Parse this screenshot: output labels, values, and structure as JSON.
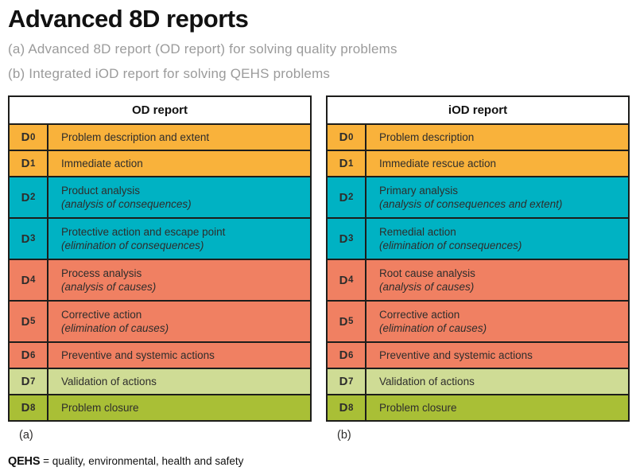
{
  "title": "Advanced 8D reports",
  "subtitles": [
    "(a) Advanced 8D report (OD report) for solving quality problems",
    "(b) Integrated iOD report for solving QEHS problems"
  ],
  "colors": {
    "orange": "#F9B23B",
    "teal": "#00B2C3",
    "salmon": "#F08062",
    "lightgreen": "#CFDC95",
    "olive": "#A9BF36",
    "border": "#1d1d1b",
    "subtitle_gray": "#9b9b9b"
  },
  "tables": [
    {
      "header": "OD report",
      "caption": "(a)",
      "rows": [
        {
          "step": "D",
          "num": "0",
          "line1": "Problem description and extent",
          "line2": "",
          "color": "orange"
        },
        {
          "step": "D",
          "num": "1",
          "line1": "Immediate action",
          "line2": "",
          "color": "orange"
        },
        {
          "step": "D",
          "num": "2",
          "line1": "Product analysis",
          "line2": "(analysis of consequences)",
          "color": "teal"
        },
        {
          "step": "D",
          "num": "3",
          "line1": "Protective action and escape point",
          "line2": "(elimination of consequences)",
          "color": "teal"
        },
        {
          "step": "D",
          "num": "4",
          "line1": "Process analysis",
          "line2": "(analysis of causes)",
          "color": "salmon"
        },
        {
          "step": "D",
          "num": "5",
          "line1": "Corrective action",
          "line2": "(elimination of causes)",
          "color": "salmon"
        },
        {
          "step": "D",
          "num": "6",
          "line1": "Preventive and systemic actions",
          "line2": "",
          "color": "salmon"
        },
        {
          "step": "D",
          "num": "7",
          "line1": "Validation of actions",
          "line2": "",
          "color": "lightgreen"
        },
        {
          "step": "D",
          "num": "8",
          "line1": "Problem closure",
          "line2": "",
          "color": "olive"
        }
      ]
    },
    {
      "header": "iOD report",
      "caption": "(b)",
      "rows": [
        {
          "step": "D",
          "num": "0",
          "line1": "Problem description",
          "line2": "",
          "color": "orange"
        },
        {
          "step": "D",
          "num": "1",
          "line1": "Immediate rescue action",
          "line2": "",
          "color": "orange"
        },
        {
          "step": "D",
          "num": "2",
          "line1": "Primary analysis",
          "line2": "(analysis of consequences and extent)",
          "color": "teal"
        },
        {
          "step": "D",
          "num": "3",
          "line1": "Remedial action",
          "line2": "(elimination of consequences)",
          "color": "teal"
        },
        {
          "step": "D",
          "num": "4",
          "line1": "Root cause analysis",
          "line2": "(analysis of causes)",
          "color": "salmon"
        },
        {
          "step": "D",
          "num": "5",
          "line1": "Corrective action",
          "line2": "(elimination of causes)",
          "color": "salmon"
        },
        {
          "step": "D",
          "num": "6",
          "line1": "Preventive and systemic actions",
          "line2": "",
          "color": "salmon"
        },
        {
          "step": "D",
          "num": "7",
          "line1": "Validation of actions",
          "line2": "",
          "color": "lightgreen"
        },
        {
          "step": "D",
          "num": "8",
          "line1": "Problem closure",
          "line2": "",
          "color": "olive"
        }
      ]
    }
  ],
  "footnote": {
    "term": "QEHS",
    "definition": "= quality, environmental, health and safety"
  }
}
